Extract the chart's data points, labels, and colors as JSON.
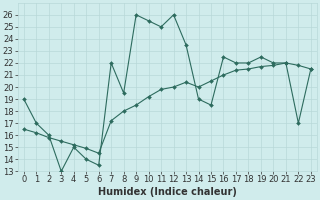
{
  "xlabel": "Humidex (Indice chaleur)",
  "xlim": [
    -0.5,
    23.5
  ],
  "ylim": [
    13,
    27
  ],
  "yticks": [
    13,
    14,
    15,
    16,
    17,
    18,
    19,
    20,
    21,
    22,
    23,
    24,
    25,
    26
  ],
  "xticks": [
    0,
    1,
    2,
    3,
    4,
    5,
    6,
    7,
    8,
    9,
    10,
    11,
    12,
    13,
    14,
    15,
    16,
    17,
    18,
    19,
    20,
    21,
    22,
    23
  ],
  "line1_x": [
    0,
    1,
    2,
    3,
    4,
    5,
    6,
    7,
    8,
    9,
    10,
    11,
    12,
    13,
    14,
    15,
    16,
    17,
    18,
    19,
    20,
    21,
    22,
    23
  ],
  "line1_y": [
    19.0,
    17.0,
    16.0,
    13.0,
    15.0,
    14.0,
    13.5,
    22.0,
    19.5,
    26.0,
    25.5,
    25.0,
    26.0,
    23.5,
    19.0,
    18.5,
    22.5,
    22.0,
    22.0,
    22.5,
    22.0,
    22.0,
    17.0,
    21.5
  ],
  "line2_x": [
    0,
    1,
    2,
    3,
    4,
    5,
    6,
    7,
    8,
    9,
    10,
    11,
    12,
    13,
    14,
    15,
    16,
    17,
    18,
    19,
    20,
    21,
    22,
    23
  ],
  "line2_y": [
    16.5,
    16.2,
    15.8,
    15.5,
    15.2,
    14.9,
    14.5,
    17.2,
    18.0,
    18.5,
    19.2,
    19.8,
    20.0,
    20.4,
    20.0,
    20.5,
    21.0,
    21.4,
    21.5,
    21.7,
    21.8,
    22.0,
    21.8,
    21.5
  ],
  "line_color": "#2d6b5e",
  "bg_color": "#d0ecec",
  "grid_color": "#b8d8d8",
  "marker": "D",
  "marker_size": 2,
  "linewidth": 0.8,
  "label_fontsize": 7,
  "tick_fontsize": 6
}
